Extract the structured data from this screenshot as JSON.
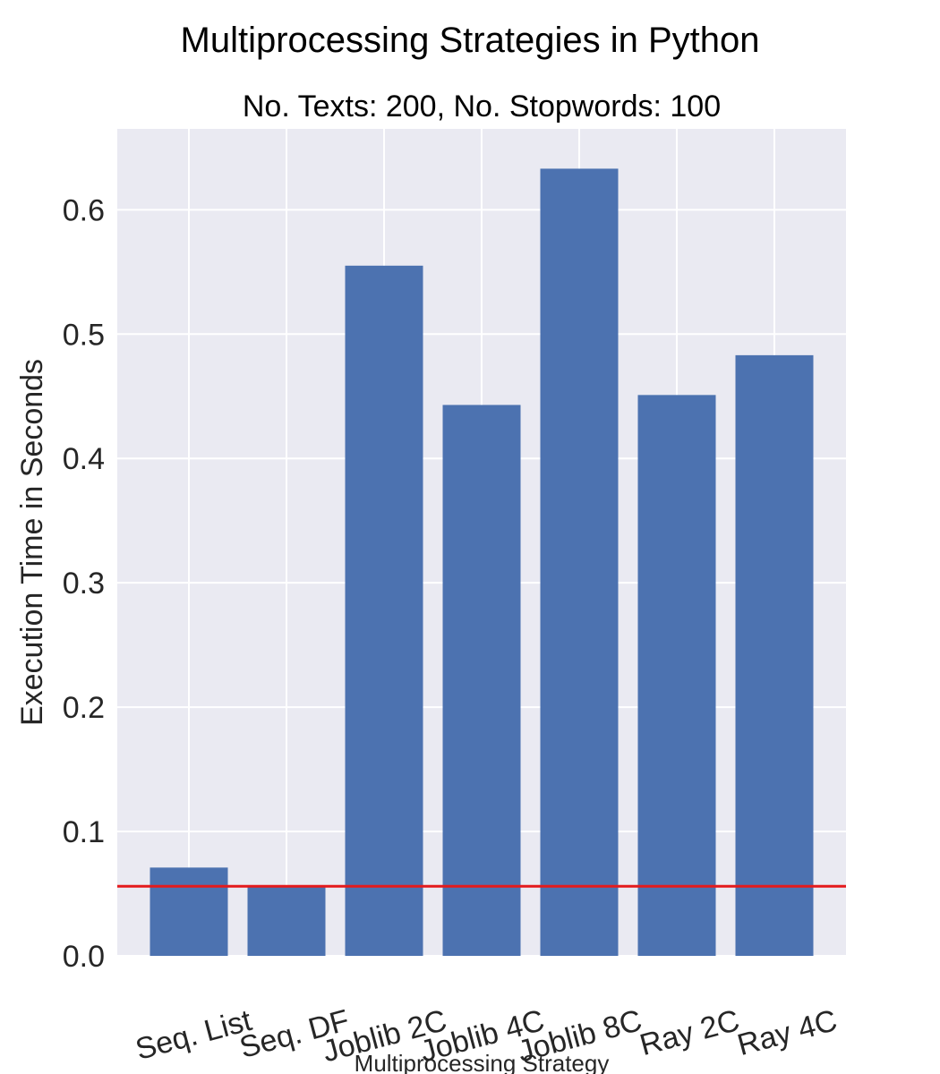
{
  "suptitle": "Multiprocessing Strategies in Python",
  "chart_data": {
    "type": "bar",
    "title": "No. Texts: 200, No. Stopwords: 100",
    "xlabel": "Multiprocessing Strategy",
    "ylabel": "Execution Time in Seconds",
    "categories": [
      "Seq. List",
      "Seq. DF",
      "Joblib 2C",
      "Joblib 4C",
      "Joblib 8C",
      "Ray 2C",
      "Ray 4C"
    ],
    "values": [
      0.071,
      0.056,
      0.555,
      0.443,
      0.633,
      0.451,
      0.483
    ],
    "ylim": [
      0,
      0.665
    ],
    "yticks": [
      0.0,
      0.1,
      0.2,
      0.3,
      0.4,
      0.5,
      0.6
    ],
    "ytick_labels": [
      "0.0",
      "0.1",
      "0.2",
      "0.3",
      "0.4",
      "0.5",
      "0.6"
    ],
    "reference_line": {
      "y": 0.056,
      "color": "#e41a1c"
    },
    "bar_color": "#4c72b0",
    "background_color": "#eaeaf2",
    "grid": true
  }
}
